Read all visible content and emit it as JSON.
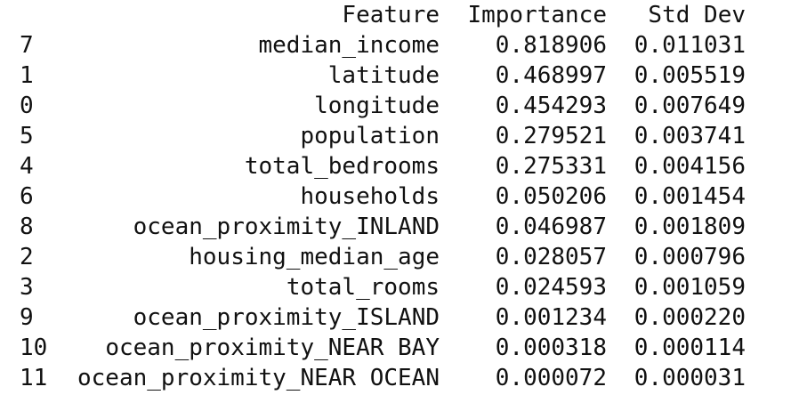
{
  "table": {
    "columns": {
      "index": "",
      "feature": "Feature",
      "importance": "Importance",
      "std": "Std Dev"
    },
    "rows": [
      {
        "index": "7",
        "feature": "median_income",
        "importance": "0.818906",
        "std": "0.011031"
      },
      {
        "index": "1",
        "feature": "latitude",
        "importance": "0.468997",
        "std": "0.005519"
      },
      {
        "index": "0",
        "feature": "longitude",
        "importance": "0.454293",
        "std": "0.007649"
      },
      {
        "index": "5",
        "feature": "population",
        "importance": "0.279521",
        "std": "0.003741"
      },
      {
        "index": "4",
        "feature": "total_bedrooms",
        "importance": "0.275331",
        "std": "0.004156"
      },
      {
        "index": "6",
        "feature": "households",
        "importance": "0.050206",
        "std": "0.001454"
      },
      {
        "index": "8",
        "feature": "ocean_proximity_INLAND",
        "importance": "0.046987",
        "std": "0.001809"
      },
      {
        "index": "2",
        "feature": "housing_median_age",
        "importance": "0.028057",
        "std": "0.000796"
      },
      {
        "index": "3",
        "feature": "total_rooms",
        "importance": "0.024593",
        "std": "0.001059"
      },
      {
        "index": "9",
        "feature": "ocean_proximity_ISLAND",
        "importance": "0.001234",
        "std": "0.000220"
      },
      {
        "index": "10",
        "feature": "ocean_proximity_NEAR BAY",
        "importance": "0.000318",
        "std": "0.000114"
      },
      {
        "index": "11",
        "feature": "ocean_proximity_NEAR OCEAN",
        "importance": "0.000072",
        "std": "0.000031"
      }
    ]
  }
}
